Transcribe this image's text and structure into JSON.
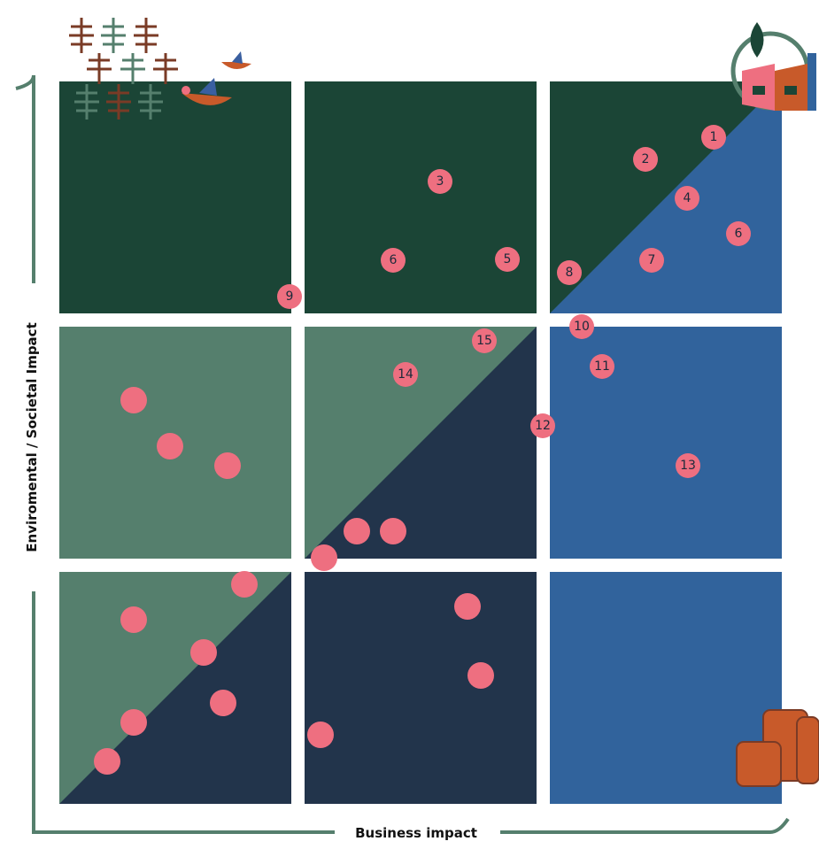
{
  "axes": {
    "y_label": "Enviromental / Societal Impact",
    "x_label": "Business impact"
  },
  "points": [
    {
      "label": "1"
    },
    {
      "label": "2"
    },
    {
      "label": "3"
    },
    {
      "label": "4"
    },
    {
      "label": "6"
    },
    {
      "label": "6"
    },
    {
      "label": "5"
    },
    {
      "label": "7"
    },
    {
      "label": "8"
    },
    {
      "label": "9"
    },
    {
      "label": "10"
    },
    {
      "label": "11"
    },
    {
      "label": "15"
    },
    {
      "label": "14"
    },
    {
      "label": "12"
    },
    {
      "label": "13"
    }
  ]
}
